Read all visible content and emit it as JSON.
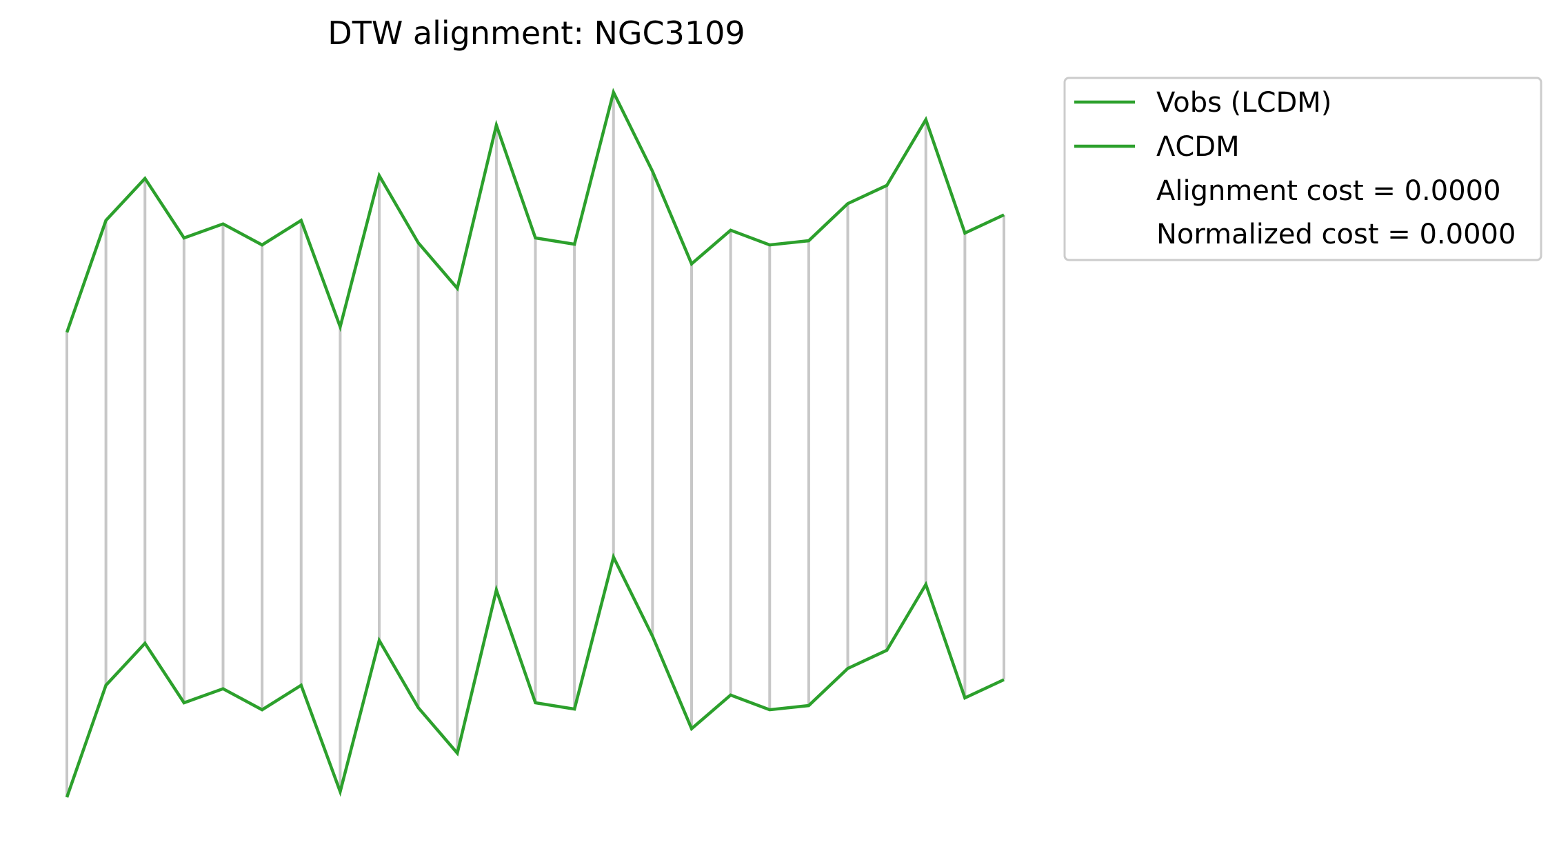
{
  "chart_data": {
    "type": "line",
    "title": "DTW alignment: NGC3109",
    "xlabel": "",
    "ylabel": "",
    "axes_visible": false,
    "grid": false,
    "x": [
      0,
      1,
      2,
      3,
      4,
      5,
      6,
      7,
      8,
      9,
      10,
      11,
      12,
      13,
      14,
      15,
      16,
      17,
      18,
      19,
      20,
      21,
      22,
      23,
      24
    ],
    "series": [
      {
        "name": "Vobs (LCDM)",
        "color": "#2ca02c",
        "values": [
          0.0,
          1.6,
          2.2,
          1.35,
          1.55,
          1.25,
          1.6,
          0.08,
          2.24,
          1.28,
          0.63,
          2.96,
          1.35,
          1.26,
          3.43,
          2.3,
          0.98,
          1.46,
          1.25,
          1.31,
          1.84,
          2.1,
          3.04,
          1.42,
          1.68
        ]
      },
      {
        "name": "ΛCDM",
        "color": "#2ca02c",
        "values": [
          0.0,
          1.6,
          2.2,
          1.35,
          1.55,
          1.25,
          1.6,
          0.08,
          2.24,
          1.28,
          0.63,
          2.96,
          1.35,
          1.26,
          3.43,
          2.3,
          0.98,
          1.46,
          1.25,
          1.31,
          1.84,
          2.1,
          3.04,
          1.42,
          1.68
        ]
      }
    ],
    "alignment_pairs": [
      [
        0,
        0
      ],
      [
        1,
        1
      ],
      [
        2,
        2
      ],
      [
        3,
        3
      ],
      [
        4,
        4
      ],
      [
        5,
        5
      ],
      [
        6,
        6
      ],
      [
        7,
        7
      ],
      [
        8,
        8
      ],
      [
        9,
        9
      ],
      [
        10,
        10
      ],
      [
        11,
        11
      ],
      [
        12,
        12
      ],
      [
        13,
        13
      ],
      [
        14,
        14
      ],
      [
        15,
        15
      ],
      [
        16,
        16
      ],
      [
        17,
        17
      ],
      [
        18,
        18
      ],
      [
        19,
        19
      ],
      [
        20,
        20
      ],
      [
        21,
        21
      ],
      [
        22,
        22
      ],
      [
        23,
        23
      ],
      [
        24,
        24
      ]
    ],
    "alignment_color": "#c7c7c7",
    "legend": {
      "placement": "outside-upper-right",
      "entries": [
        {
          "label": "Vobs (LCDM)",
          "has_line": true,
          "color": "#2ca02c"
        },
        {
          "label": "ΛCDM",
          "has_line": true,
          "color": "#2ca02c"
        },
        {
          "label": "Alignment cost = 0.0000",
          "has_line": false
        },
        {
          "label": "Normalized cost = 0.0000",
          "has_line": false
        }
      ]
    }
  }
}
